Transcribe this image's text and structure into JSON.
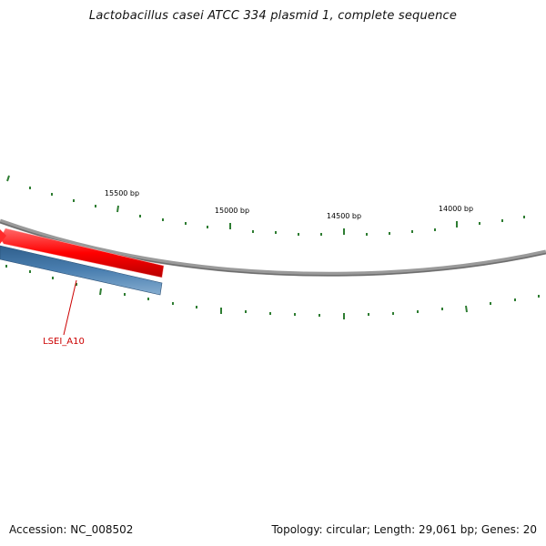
{
  "title": "Lactobacillus casei ATCC 334 plasmid 1, complete sequence",
  "footer": {
    "accession_label": "Accession:",
    "accession": "NC_008502",
    "topology_label": "Topology:",
    "topology": "circular",
    "length_label": "Length:",
    "length": "29,061 bp",
    "genes_label": "Genes:",
    "genes": "20"
  },
  "map": {
    "sequence_length_bp": 29061,
    "tick_labels": [
      "15500 bp",
      "15000 bp",
      "14500 bp",
      "14000 bp"
    ],
    "gene": {
      "name": "LSEI_A10"
    },
    "colors": {
      "backbone": "#7a7a7a",
      "forward_feature": "#ff0000",
      "reverse_feature": "#4a7fb0",
      "ticks": "#2e7d32",
      "gene_label": "#cc0000"
    }
  }
}
